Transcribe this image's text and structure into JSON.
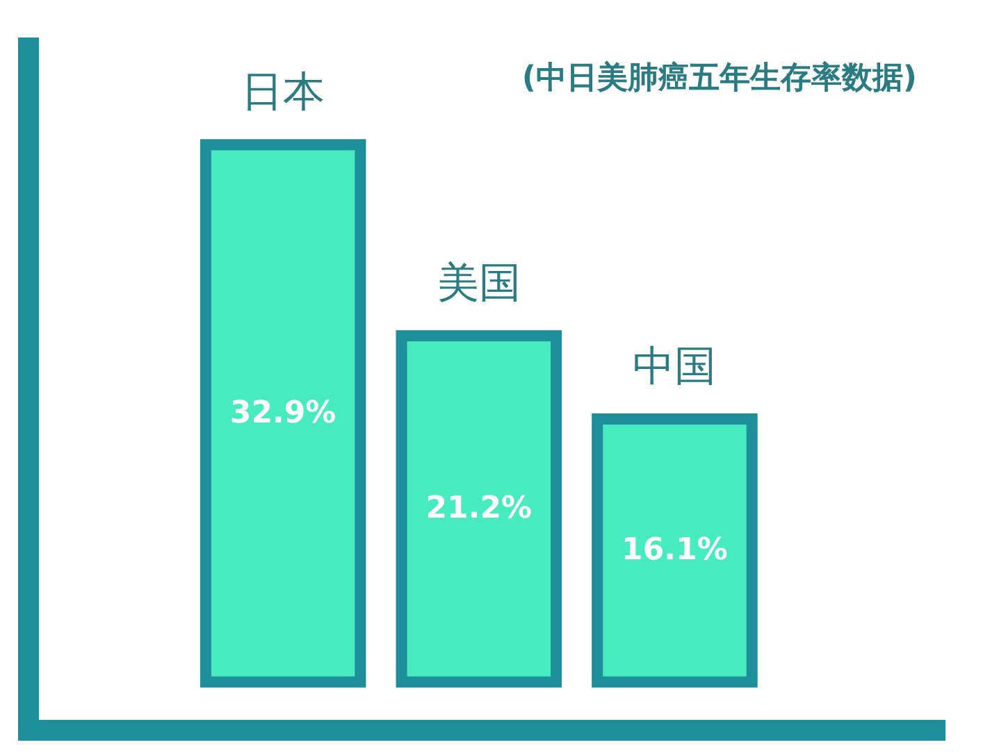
{
  "chart_data": {
    "type": "bar",
    "title": "(中日美肺癌五年生存率数据)",
    "categories": [
      "日本",
      "美国",
      "中国"
    ],
    "values": [
      32.9,
      21.2,
      16.1
    ],
    "value_labels": [
      "32.9%",
      "21.2%",
      "16.1%"
    ],
    "color": "#48eabf"
  }
}
